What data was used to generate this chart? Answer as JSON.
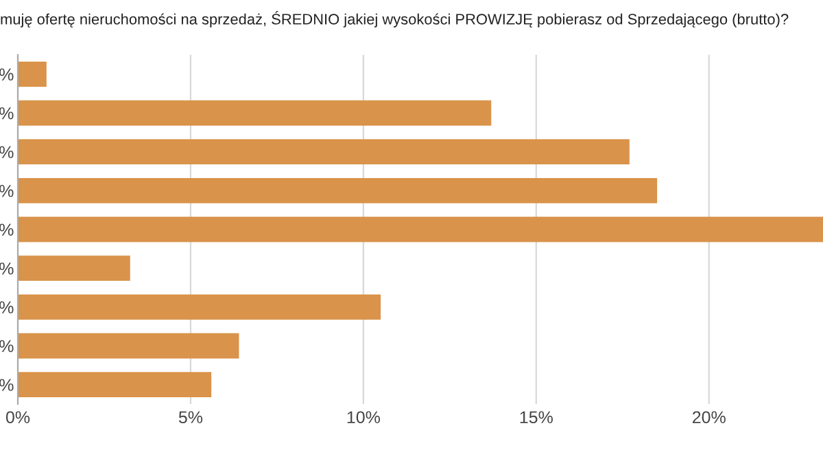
{
  "chart_data": {
    "type": "bar",
    "orientation": "horizontal",
    "title": "muję ofertę nieruchomości na sprzedaż, ŚREDNIO jakiej wysokości PROWIZJĘ pobierasz od Sprzedającego (brutto)?",
    "categories": [
      "%",
      "%",
      "%",
      "%",
      "%",
      "%",
      "%",
      "%",
      "%"
    ],
    "values": [
      0.83,
      13.7,
      17.7,
      18.5,
      23.3,
      3.25,
      10.5,
      6.4,
      5.6
    ],
    "color": "#d9934a",
    "xlim": [
      0,
      23.3
    ],
    "xticks": [
      {
        "value": 0,
        "label": "0%"
      },
      {
        "value": 5,
        "label": "5%"
      },
      {
        "value": 10,
        "label": "10%"
      },
      {
        "value": 15,
        "label": "15%"
      },
      {
        "value": 20,
        "label": "20%"
      }
    ],
    "grid": "x"
  }
}
